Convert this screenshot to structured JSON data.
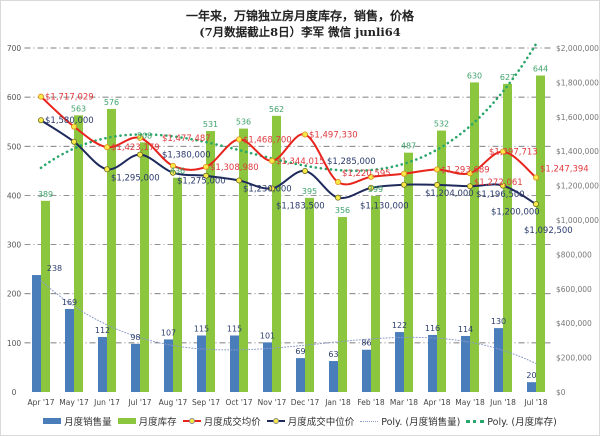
{
  "title": "一年来，万锦独立房月度库存，销售，价格",
  "subtitle": "(7月数据截止8日）李军 微信 junli64",
  "chart_data": {
    "type": "bar+line",
    "categories": [
      "Apr '17",
      "May '17",
      "Jun '17",
      "Jul '17",
      "Aug '17",
      "Sep '17",
      "Oct '17",
      "Nov '17",
      "Dec '17",
      "Jan '18",
      "Feb '18",
      "Mar '18",
      "Apr '18",
      "May '18",
      "Jun '18",
      "Jul '18"
    ],
    "left_axis": {
      "ylim": [
        0,
        700
      ],
      "ticks": [
        0,
        100,
        200,
        300,
        400,
        500,
        600,
        700
      ]
    },
    "right_axis": {
      "ylim": [
        0,
        2000000
      ],
      "ticks": [
        "$0",
        "$200,000",
        "$400,000",
        "$600,000",
        "$800,000",
        "$1,000,000",
        "$1,200,000",
        "$1,400,000",
        "$1,600,000",
        "$1,800,000",
        "$2,000,000"
      ]
    },
    "grid": true,
    "legend": "bottom",
    "series": [
      {
        "name": "月度销售量",
        "type": "bar",
        "axis": "left",
        "color": "#4a7ebb",
        "values": [
          238,
          169,
          112,
          98,
          107,
          115,
          115,
          101,
          69,
          63,
          86,
          122,
          116,
          114,
          130,
          20
        ],
        "labels": [
          "238",
          "169",
          "112",
          "98",
          "107",
          "115",
          "115",
          "101",
          "69",
          "63",
          "86",
          "122",
          "116",
          "114",
          "130",
          "20"
        ]
      },
      {
        "name": "月度库存",
        "type": "bar",
        "axis": "left",
        "color": "#8cc63f",
        "values": [
          389,
          563,
          576,
          508,
          436,
          531,
          536,
          562,
          395,
          356,
          399,
          487,
          532,
          630,
          627,
          644
        ],
        "labels": [
          "389",
          "563",
          "576",
          "508",
          "436",
          "531",
          "536",
          "562",
          "395",
          "356",
          "399",
          "487",
          "532",
          "630",
          "627",
          "644"
        ]
      },
      {
        "name": "月度成交均价",
        "type": "line",
        "axis": "right",
        "color": "#e8231b",
        "values": [
          1717029,
          1543000,
          1423179,
          1477487,
          1315000,
          1308980,
          1468700,
          1344015,
          1497330,
          1220595,
          1251000,
          1269000,
          1293689,
          1272061,
          1397713,
          1247394
        ],
        "labels": [
          "$1,717,029",
          "",
          "$1,423,179",
          "$1,477,487",
          "",
          "$1,308,980",
          "$1,468,700",
          "$1,344,015",
          "$1,497,330",
          "$1,220,595",
          "",
          "",
          "$1,293,689",
          "$1,272,061",
          "$1,397,713",
          "$1,247,394"
        ]
      },
      {
        "name": "月度成交中位价",
        "type": "line",
        "axis": "right",
        "color": "#1f2a5c",
        "values": [
          1580000,
          1455000,
          1295000,
          1380000,
          1275000,
          1257000,
          1230000,
          1183500,
          1285000,
          1130000,
          1187000,
          1205000,
          1204000,
          1196500,
          1200000,
          1092500
        ],
        "labels": [
          "$1,580,000",
          "",
          "$1,295,000",
          "$1,380,000",
          "$1,275,000",
          "",
          "$1,230,000",
          "$1,183,500",
          "$1,285,000",
          "$1,130,000",
          "",
          "",
          "$1,204,000",
          "$1,196,500",
          "$1,200,000",
          "$1,092,500"
        ]
      },
      {
        "name": "Poly. (月度销售量)",
        "type": "trendline",
        "of": "月度销售量",
        "color": "#8a9ac8"
      },
      {
        "name": "Poly. (月度库存)",
        "type": "trendline",
        "of": "月度库存",
        "color": "#2aa66a"
      }
    ]
  }
}
